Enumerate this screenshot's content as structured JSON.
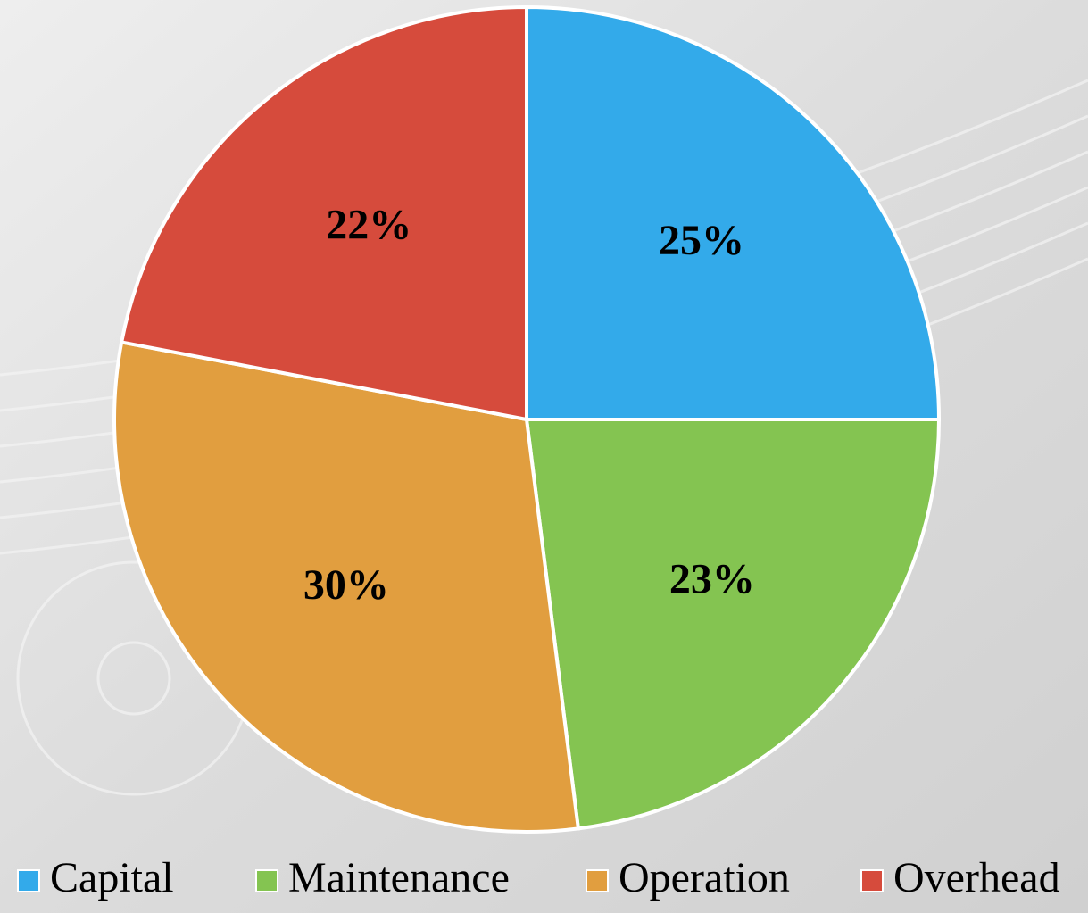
{
  "chart_data": {
    "type": "pie",
    "categories": [
      "Capital",
      "Maintenance",
      "Operation",
      "Overhead"
    ],
    "values": [
      25,
      23,
      30,
      22
    ],
    "value_labels": [
      "25%",
      "23%",
      "30%",
      "22%"
    ],
    "colors": [
      "#33aaea",
      "#84c451",
      "#e19e3f",
      "#d64b3c"
    ]
  }
}
